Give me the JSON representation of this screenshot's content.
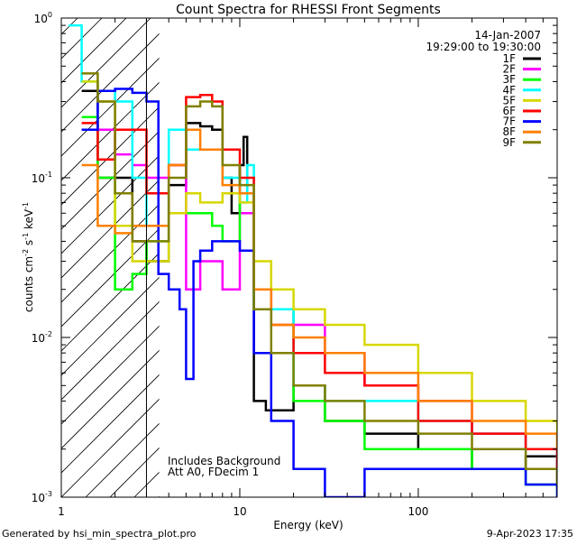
{
  "chart_data": {
    "type": "line",
    "title": "Count Spectra for RHESSI Front Segments",
    "xlabel": "Energy (keV)",
    "ylabel": "counts cm-2 s-1 keV-1",
    "ylabel_parts": {
      "base": "counts cm",
      "sup1": "-2",
      "mid1": " s",
      "sup2": "-1",
      "mid2": " keV",
      "sup3": "-1"
    },
    "xscale": "log",
    "yscale": "log",
    "xlim": [
      1,
      600
    ],
    "ylim": [
      0.001,
      1.0
    ],
    "x_ticks": [
      {
        "value": 1,
        "label": "1"
      },
      {
        "value": 10,
        "label": "10"
      },
      {
        "value": 100,
        "label": "100"
      }
    ],
    "y_ticks": [
      {
        "value": 0.001,
        "base": "10",
        "exp": "-3"
      },
      {
        "value": 0.01,
        "base": "10",
        "exp": "-2"
      },
      {
        "value": 0.1,
        "base": "10",
        "exp": "-1"
      },
      {
        "value": 1,
        "base": "10",
        "exp": "0"
      }
    ],
    "date_label": "14-Jan-2007",
    "time_range_label": "19:29:00 to 19:30:00",
    "annotations": [
      "Includes Background",
      "Att A0, FDecim 1"
    ],
    "excluded_region": {
      "from": 1,
      "to": 3,
      "style": "hatched"
    },
    "footer_left": "Generated by hsi_min_spectra_plot.pro",
    "footer_right": "9-Apr-2023 17:35",
    "legend_position": "top-right",
    "series": [
      {
        "name": "1F",
        "color": "#000000",
        "points": [
          [
            1.3,
            0.35
          ],
          [
            1.6,
            0.1
          ],
          [
            2.0,
            0.1
          ],
          [
            2.5,
            0.04
          ],
          [
            3.0,
            0.03
          ],
          [
            4.0,
            0.09
          ],
          [
            5.0,
            0.22
          ],
          [
            6.0,
            0.21
          ],
          [
            7.0,
            0.2
          ],
          [
            8.0,
            0.1
          ],
          [
            9.0,
            0.06
          ],
          [
            10.0,
            0.12
          ],
          [
            10.5,
            0.18
          ],
          [
            11.0,
            0.08
          ],
          [
            12.0,
            0.004
          ],
          [
            14.0,
            0.0035
          ],
          [
            20.0,
            0.005
          ],
          [
            30.0,
            0.003
          ],
          [
            50.0,
            0.0025
          ],
          [
            100.0,
            0.002
          ],
          [
            200.0,
            0.0015
          ],
          [
            400.0,
            0.0018
          ],
          [
            600.0,
            0.0012
          ]
        ]
      },
      {
        "name": "2F",
        "color": "#ff00ff",
        "points": [
          [
            1.3,
            0.2
          ],
          [
            1.6,
            0.2
          ],
          [
            2.0,
            0.14
          ],
          [
            2.5,
            0.12
          ],
          [
            3.0,
            0.1
          ],
          [
            4.0,
            0.12
          ],
          [
            5.0,
            0.02
          ],
          [
            6.0,
            0.03
          ],
          [
            8.0,
            0.02
          ],
          [
            10.0,
            0.06
          ],
          [
            12.0,
            0.02
          ],
          [
            15.0,
            0.015
          ],
          [
            20.0,
            0.012
          ],
          [
            30.0,
            0.008
          ],
          [
            50.0,
            0.005
          ],
          [
            100.0,
            0.004
          ],
          [
            200.0,
            0.0025
          ],
          [
            400.0,
            0.002
          ],
          [
            600.0,
            0.0015
          ]
        ]
      },
      {
        "name": "3F",
        "color": "#00ff00",
        "points": [
          [
            1.3,
            0.24
          ],
          [
            1.6,
            0.1
          ],
          [
            2.0,
            0.02
          ],
          [
            2.5,
            0.025
          ],
          [
            3.0,
            0.04
          ],
          [
            4.0,
            0.06
          ],
          [
            5.0,
            0.06
          ],
          [
            6.0,
            0.06
          ],
          [
            7.0,
            0.05
          ],
          [
            8.0,
            0.04
          ],
          [
            10.0,
            0.08
          ],
          [
            12.0,
            0.015
          ],
          [
            20.0,
            0.004
          ],
          [
            30.0,
            0.003
          ],
          [
            50.0,
            0.002
          ],
          [
            100.0,
            0.002
          ],
          [
            200.0,
            0.0015
          ],
          [
            400.0,
            0.0012
          ],
          [
            600.0,
            0.001
          ]
        ]
      },
      {
        "name": "4F",
        "color": "#00ffff",
        "points": [
          [
            1.1,
            0.9
          ],
          [
            1.3,
            0.4
          ],
          [
            1.6,
            0.35
          ],
          [
            2.0,
            0.3
          ],
          [
            2.5,
            0.1
          ],
          [
            3.0,
            0.05
          ],
          [
            4.0,
            0.2
          ],
          [
            5.0,
            0.15
          ],
          [
            8.0,
            0.1
          ],
          [
            10.0,
            0.07
          ],
          [
            11.0,
            0.12
          ],
          [
            12.0,
            0.015
          ],
          [
            20.0,
            0.005
          ],
          [
            30.0,
            0.004
          ],
          [
            50.0,
            0.004
          ],
          [
            100.0,
            0.003
          ],
          [
            200.0,
            0.0025
          ],
          [
            400.0,
            0.002
          ],
          [
            600.0,
            0.0015
          ]
        ]
      },
      {
        "name": "5F",
        "color": "#d7d700",
        "points": [
          [
            1.3,
            0.4
          ],
          [
            1.6,
            0.3
          ],
          [
            2.0,
            0.05
          ],
          [
            2.5,
            0.03
          ],
          [
            3.0,
            0.03
          ],
          [
            4.0,
            0.06
          ],
          [
            5.0,
            0.08
          ],
          [
            6.0,
            0.07
          ],
          [
            8.0,
            0.08
          ],
          [
            10.0,
            0.07
          ],
          [
            12.0,
            0.03
          ],
          [
            15.0,
            0.02
          ],
          [
            20.0,
            0.015
          ],
          [
            30.0,
            0.012
          ],
          [
            50.0,
            0.009
          ],
          [
            100.0,
            0.006
          ],
          [
            200.0,
            0.004
          ],
          [
            400.0,
            0.003
          ],
          [
            600.0,
            0.002
          ]
        ]
      },
      {
        "name": "6F",
        "color": "#ff0000",
        "points": [
          [
            1.3,
            0.22
          ],
          [
            1.6,
            0.13
          ],
          [
            2.0,
            0.2
          ],
          [
            2.5,
            0.2
          ],
          [
            3.0,
            0.08
          ],
          [
            4.0,
            0.12
          ],
          [
            5.0,
            0.32
          ],
          [
            6.0,
            0.33
          ],
          [
            7.0,
            0.3
          ],
          [
            8.0,
            0.15
          ],
          [
            10.0,
            0.1
          ],
          [
            12.0,
            0.02
          ],
          [
            15.0,
            0.012
          ],
          [
            20.0,
            0.008
          ],
          [
            30.0,
            0.006
          ],
          [
            50.0,
            0.005
          ],
          [
            100.0,
            0.003
          ],
          [
            200.0,
            0.0025
          ],
          [
            400.0,
            0.002
          ],
          [
            600.0,
            0.0015
          ]
        ]
      },
      {
        "name": "7F",
        "color": "#0000ff",
        "points": [
          [
            1.3,
            0.2
          ],
          [
            1.6,
            0.35
          ],
          [
            2.0,
            0.36
          ],
          [
            2.5,
            0.34
          ],
          [
            3.0,
            0.3
          ],
          [
            3.5,
            0.025
          ],
          [
            4.0,
            0.02
          ],
          [
            4.6,
            0.015
          ],
          [
            5.0,
            0.0055
          ],
          [
            5.5,
            0.03
          ],
          [
            6.0,
            0.035
          ],
          [
            7.0,
            0.04
          ],
          [
            8.0,
            0.04
          ],
          [
            10.0,
            0.035
          ],
          [
            12.0,
            0.008
          ],
          [
            15.0,
            0.003
          ],
          [
            20.0,
            0.0015
          ],
          [
            30.0,
            0.001
          ],
          [
            50.0,
            0.0015
          ],
          [
            100.0,
            0.0015
          ],
          [
            200.0,
            0.0015
          ],
          [
            400.0,
            0.0012
          ],
          [
            600.0,
            0.001
          ]
        ]
      },
      {
        "name": "8F",
        "color": "#ff8000",
        "points": [
          [
            1.3,
            0.12
          ],
          [
            1.6,
            0.05
          ],
          [
            2.0,
            0.045
          ],
          [
            2.5,
            0.05
          ],
          [
            3.0,
            0.05
          ],
          [
            4.0,
            0.12
          ],
          [
            5.0,
            0.2
          ],
          [
            6.0,
            0.15
          ],
          [
            8.0,
            0.09
          ],
          [
            10.0,
            0.08
          ],
          [
            12.0,
            0.02
          ],
          [
            15.0,
            0.012
          ],
          [
            20.0,
            0.01
          ],
          [
            30.0,
            0.008
          ],
          [
            50.0,
            0.006
          ],
          [
            100.0,
            0.004
          ],
          [
            200.0,
            0.003
          ],
          [
            400.0,
            0.0025
          ],
          [
            600.0,
            0.002
          ]
        ]
      },
      {
        "name": "9F",
        "color": "#808000",
        "points": [
          [
            1.3,
            0.45
          ],
          [
            1.6,
            0.3
          ],
          [
            2.0,
            0.08
          ],
          [
            2.5,
            0.04
          ],
          [
            3.0,
            0.04
          ],
          [
            4.0,
            0.1
          ],
          [
            5.0,
            0.28
          ],
          [
            6.0,
            0.3
          ],
          [
            7.0,
            0.28
          ],
          [
            8.0,
            0.12
          ],
          [
            10.0,
            0.09
          ],
          [
            12.0,
            0.015
          ],
          [
            15.0,
            0.008
          ],
          [
            20.0,
            0.005
          ],
          [
            30.0,
            0.004
          ],
          [
            50.0,
            0.003
          ],
          [
            100.0,
            0.0025
          ],
          [
            200.0,
            0.002
          ],
          [
            400.0,
            0.0015
          ],
          [
            600.0,
            0.0012
          ]
        ]
      }
    ]
  }
}
